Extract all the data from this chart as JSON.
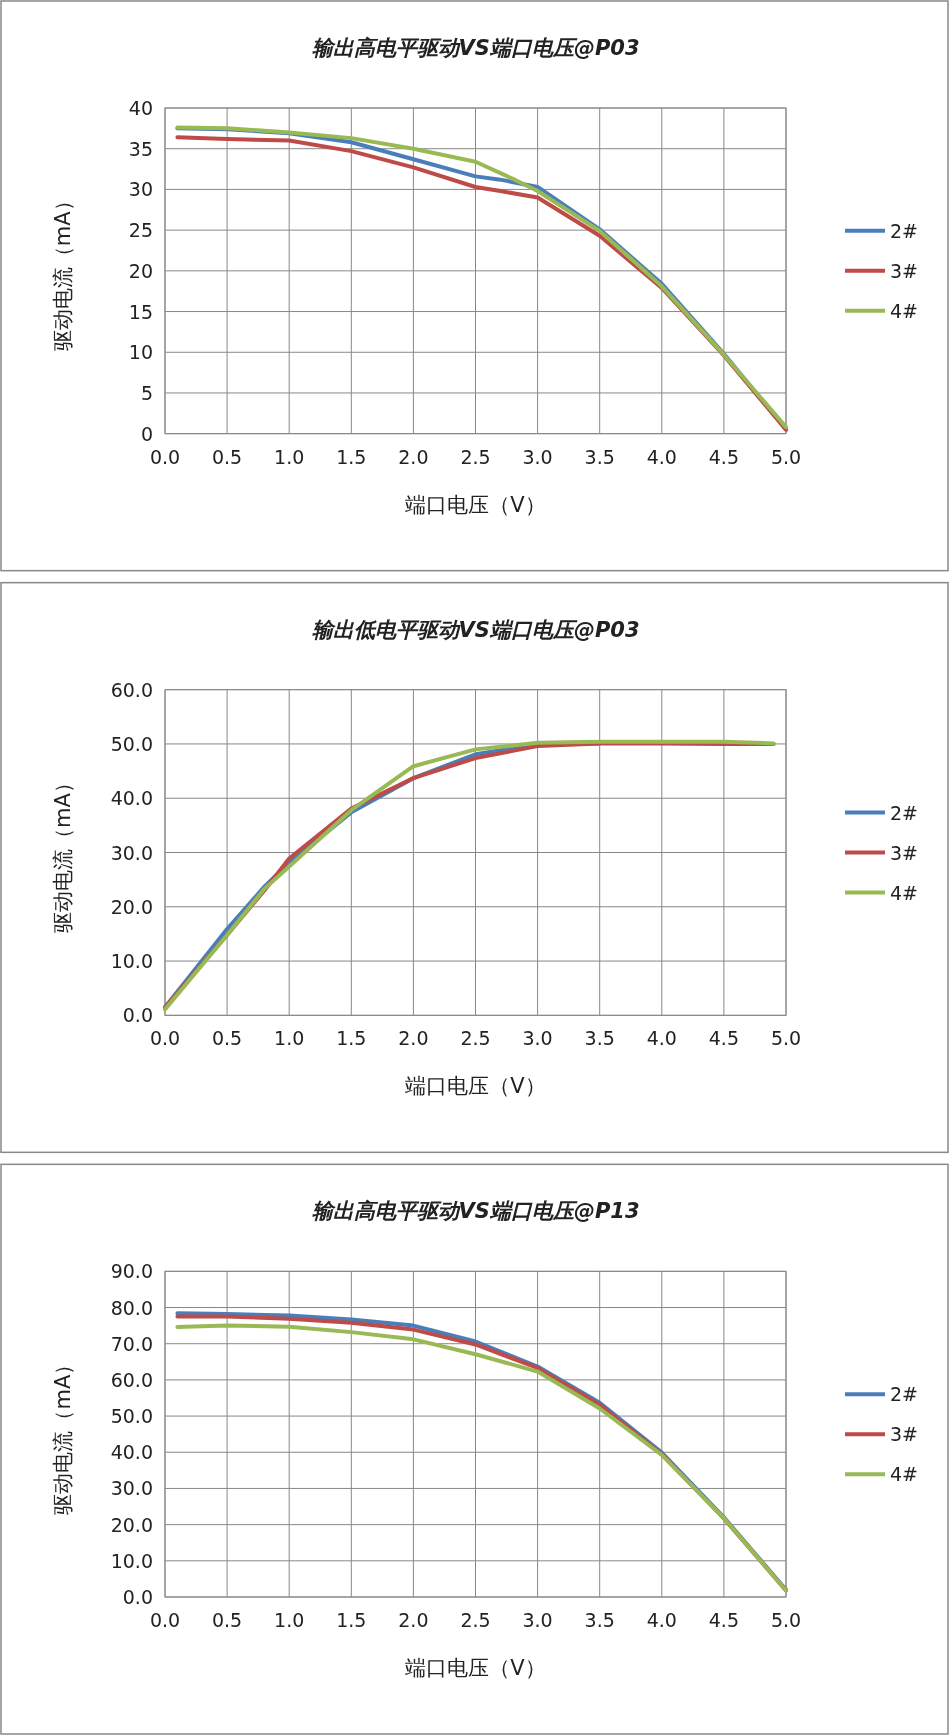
{
  "chart_data": [
    {
      "type": "line",
      "title": "输出高电平驱动VS端口电压@P03",
      "xlabel": "端口电压（V）",
      "ylabel": "驱动电流（mA）",
      "grid": true,
      "legend": "right",
      "xlim": [
        0,
        5
      ],
      "ylim": [
        0,
        40
      ],
      "xticks": [
        {
          "value": 0,
          "label": "0.0"
        },
        {
          "value": 0.5,
          "label": "0.5"
        },
        {
          "value": 1,
          "label": "1.0"
        },
        {
          "value": 1.5,
          "label": "1.5"
        },
        {
          "value": 2,
          "label": "2.0"
        },
        {
          "value": 2.5,
          "label": "2.5"
        },
        {
          "value": 3,
          "label": "3.0"
        },
        {
          "value": 3.5,
          "label": "3.5"
        },
        {
          "value": 4,
          "label": "4.0"
        },
        {
          "value": 4.5,
          "label": "4.5"
        },
        {
          "value": 5,
          "label": "5.0"
        }
      ],
      "yticks": [
        0,
        5,
        10,
        15,
        20,
        25,
        30,
        35,
        40
      ],
      "series": [
        {
          "name": "2#",
          "color": "#4a7ebb",
          "x": [
            0.1,
            0.5,
            1,
            1.5,
            2,
            2.5,
            2.7,
            3,
            3.5,
            4,
            4.5,
            5
          ],
          "values": [
            37.5,
            37.4,
            36.9,
            35.8,
            33.7,
            31.6,
            31.2,
            30.3,
            25.1,
            18.4,
            9.8,
            0.5
          ]
        },
        {
          "name": "3#",
          "color": "#be4b48",
          "x": [
            0.1,
            0.5,
            1,
            1.5,
            2,
            2.5,
            2.7,
            3,
            3.5,
            4,
            4.5,
            5
          ],
          "values": [
            36.4,
            36.2,
            36.0,
            34.7,
            32.7,
            30.3,
            29.8,
            29.0,
            24.3,
            17.9,
            9.6,
            0.5
          ]
        },
        {
          "name": "4#",
          "color": "#98b954",
          "x": [
            0.1,
            0.5,
            1,
            1.5,
            2,
            2.5,
            2.8,
            3,
            3.5,
            4,
            4.5,
            5
          ],
          "values": [
            37.6,
            37.5,
            37.0,
            36.3,
            35.0,
            33.4,
            31.3,
            29.8,
            24.9,
            18.1,
            9.7,
            0.8
          ]
        }
      ]
    },
    {
      "type": "line",
      "title": "输出低电平驱动VS端口电压@P03",
      "xlabel": "端口电压（V）",
      "ylabel": "驱动电流（mA）",
      "grid": true,
      "legend": "right",
      "xlim": [
        0,
        5
      ],
      "ylim": [
        0,
        60
      ],
      "xticks": [
        {
          "value": 0,
          "label": "0.0"
        },
        {
          "value": 0.5,
          "label": "0.5"
        },
        {
          "value": 1,
          "label": "1.0"
        },
        {
          "value": 1.5,
          "label": "1.5"
        },
        {
          "value": 2,
          "label": "2.0"
        },
        {
          "value": 2.5,
          "label": "2.5"
        },
        {
          "value": 3,
          "label": "3.0"
        },
        {
          "value": 3.5,
          "label": "3.5"
        },
        {
          "value": 4,
          "label": "4.0"
        },
        {
          "value": 4.5,
          "label": "4.5"
        },
        {
          "value": 5,
          "label": "5.0"
        }
      ],
      "yticks": [
        {
          "value": 0,
          "label": "0.0"
        },
        {
          "value": 10,
          "label": "10.0"
        },
        {
          "value": 20,
          "label": "20.0"
        },
        {
          "value": 30,
          "label": "30.0"
        },
        {
          "value": 40,
          "label": "40.0"
        },
        {
          "value": 50,
          "label": "50.0"
        },
        {
          "value": 60,
          "label": "60.0"
        }
      ],
      "series": [
        {
          "name": "2#",
          "color": "#4a7ebb",
          "x": [
            0,
            0.5,
            0.8,
            1,
            1.5,
            2,
            2.5,
            3,
            3.5
          ],
          "values": [
            1.5,
            15.9,
            23.7,
            28.1,
            37.4,
            43.7,
            48.1,
            49.9,
            50.1
          ]
        },
        {
          "name": "3#",
          "color": "#be4b48",
          "x": [
            0,
            0.5,
            0.8,
            1,
            1.5,
            2,
            2.5,
            3,
            3.5,
            4,
            4.5,
            4.9
          ],
          "values": [
            1.5,
            14.8,
            23.0,
            28.9,
            38.1,
            43.7,
            47.4,
            49.6,
            50.1,
            50.1,
            50.0,
            50.0
          ]
        },
        {
          "name": "4#",
          "color": "#98b954",
          "x": [
            0,
            0.5,
            0.8,
            1,
            1.5,
            2,
            2.5,
            3,
            3.5,
            4,
            4.5,
            4.9
          ],
          "values": [
            1.1,
            14.8,
            23.3,
            27.4,
            37.8,
            45.9,
            49.0,
            50.2,
            50.4,
            50.4,
            50.4,
            50.1
          ]
        }
      ]
    },
    {
      "type": "line",
      "title": "输出高电平驱动VS端口电压@P13",
      "xlabel": "端口电压（V）",
      "ylabel": "驱动电流（mA）",
      "grid": true,
      "legend": "right",
      "xlim": [
        0,
        5
      ],
      "ylim": [
        0,
        90
      ],
      "xticks": [
        {
          "value": 0,
          "label": "0.0"
        },
        {
          "value": 0.5,
          "label": "0.5"
        },
        {
          "value": 1,
          "label": "1.0"
        },
        {
          "value": 1.5,
          "label": "1.5"
        },
        {
          "value": 2,
          "label": "2.0"
        },
        {
          "value": 2.5,
          "label": "2.5"
        },
        {
          "value": 3,
          "label": "3.0"
        },
        {
          "value": 3.5,
          "label": "3.5"
        },
        {
          "value": 4,
          "label": "4.0"
        },
        {
          "value": 4.5,
          "label": "4.5"
        },
        {
          "value": 5,
          "label": "5.0"
        }
      ],
      "yticks": [
        {
          "value": 0,
          "label": "0.0"
        },
        {
          "value": 10,
          "label": "10.0"
        },
        {
          "value": 20,
          "label": "20.0"
        },
        {
          "value": 30,
          "label": "30.0"
        },
        {
          "value": 40,
          "label": "40.0"
        },
        {
          "value": 50,
          "label": "50.0"
        },
        {
          "value": 60,
          "label": "60.0"
        },
        {
          "value": 70,
          "label": "70.0"
        },
        {
          "value": 80,
          "label": "80.0"
        },
        {
          "value": 90,
          "label": "90.0"
        }
      ],
      "series": [
        {
          "name": "2#",
          "color": "#4a7ebb",
          "x": [
            0.1,
            0.5,
            1,
            1.5,
            2,
            2.5,
            3,
            3.5,
            4,
            4.5,
            5
          ],
          "values": [
            78.4,
            78.2,
            77.8,
            76.7,
            75.0,
            70.6,
            63.7,
            53.7,
            39.9,
            22.0,
            2.0
          ]
        },
        {
          "name": "3#",
          "color": "#be4b48",
          "x": [
            0.1,
            0.5,
            1,
            1.5,
            2,
            2.5,
            3,
            3.5,
            4,
            4.5,
            5
          ],
          "values": [
            77.5,
            77.5,
            76.9,
            75.8,
            73.9,
            69.8,
            63.3,
            53.1,
            39.4,
            21.7,
            1.8
          ]
        },
        {
          "name": "4#",
          "color": "#98b954",
          "x": [
            0.1,
            0.5,
            1,
            1.5,
            2,
            2.5,
            3,
            3.5,
            4,
            4.5,
            5
          ],
          "values": [
            74.6,
            75.0,
            74.7,
            73.2,
            71.2,
            67.1,
            62.3,
            52.1,
            39.3,
            21.8,
            1.8
          ]
        }
      ]
    }
  ]
}
